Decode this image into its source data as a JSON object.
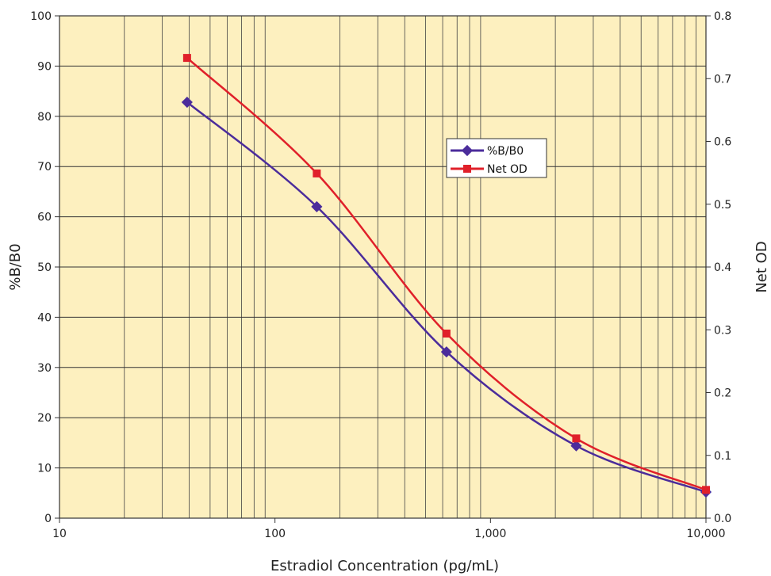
{
  "chart_data": {
    "type": "line",
    "xlabel": "Estradiol Concentration (pg/mL)",
    "ylabel": "%B/B0",
    "y2label": "Net OD",
    "x_scale": "log",
    "xlim": [
      10,
      10000
    ],
    "ylim": [
      0,
      100
    ],
    "y2lim": [
      0,
      0.8
    ],
    "x_ticks": [
      "10",
      "100",
      "1,000",
      "10,000"
    ],
    "y_ticks": [
      "0",
      "10",
      "20",
      "30",
      "40",
      "50",
      "60",
      "70",
      "80",
      "90",
      "100"
    ],
    "y2_ticks": [
      "0.0",
      "0.1",
      "0.2",
      "0.3",
      "0.4",
      "0.5",
      "0.6",
      "0.7",
      "0.8"
    ],
    "grid": true,
    "legend_position": "center-right",
    "plot_background": "#fdf0bf",
    "series": [
      {
        "name": "%B/B0",
        "axis": "left",
        "marker": "diamond",
        "color": "#4b2c9b",
        "x": [
          39.1,
          156.3,
          625,
          2500,
          10000
        ],
        "values": [
          82.8,
          62.0,
          33.1,
          14.4,
          5.2
        ]
      },
      {
        "name": "Net OD",
        "axis": "right",
        "marker": "square",
        "color": "#e0202a",
        "x": [
          39.1,
          156.3,
          625,
          2500,
          10000
        ],
        "values": [
          0.733,
          0.549,
          0.294,
          0.127,
          0.045
        ]
      }
    ]
  }
}
